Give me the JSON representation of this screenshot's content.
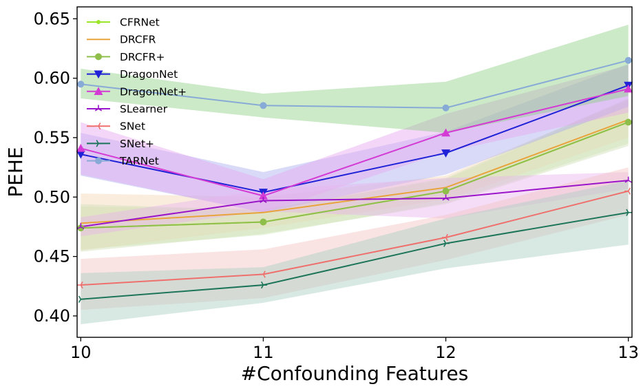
{
  "chart_data": {
    "type": "line",
    "xlabel": "#Confounding Features",
    "ylabel": "PEHE",
    "x": [
      10,
      11,
      12,
      13
    ],
    "x_ticks": [
      "10",
      "11",
      "12",
      "13"
    ],
    "xlim": [
      9.98,
      13.02
    ],
    "ylim": [
      0.382,
      0.66
    ],
    "y_ticks": [
      "0.40",
      "0.45",
      "0.50",
      "0.55",
      "0.60",
      "0.65"
    ],
    "y_tick_values": [
      0.4,
      0.45,
      0.5,
      0.55,
      0.6,
      0.65
    ],
    "legend_position": "upper-left",
    "grid": false,
    "series": [
      {
        "name": "CFRNet",
        "color": "#9be52a",
        "marker": "dot",
        "values": [
          0.474,
          0.479,
          0.505,
          0.563
        ],
        "lower": [
          0.456,
          0.468,
          0.495,
          0.545
        ],
        "upper": [
          0.492,
          0.49,
          0.515,
          0.581
        ]
      },
      {
        "name": "DRCFR",
        "color": "#e8a33a",
        "marker": "none",
        "values": [
          0.478,
          0.487,
          0.508,
          0.565
        ],
        "lower": [
          0.455,
          0.474,
          0.498,
          0.55
        ],
        "upper": [
          0.503,
          0.5,
          0.518,
          0.582
        ]
      },
      {
        "name": "DRCFR+",
        "color": "#8fbf4a",
        "marker": "circle",
        "values": [
          0.474,
          0.479,
          0.505,
          0.563
        ],
        "lower": [
          0.454,
          0.469,
          0.494,
          0.543
        ],
        "upper": [
          0.494,
          0.489,
          0.516,
          0.583
        ]
      },
      {
        "name": "DragonNet",
        "color": "#1f22d6",
        "marker": "triangle-down",
        "values": [
          0.536,
          0.504,
          0.537,
          0.594
        ],
        "lower": [
          0.518,
          0.487,
          0.519,
          0.576
        ],
        "upper": [
          0.554,
          0.521,
          0.555,
          0.612
        ]
      },
      {
        "name": "DragonNet+",
        "color": "#d43ad4",
        "marker": "triangle-up",
        "values": [
          0.541,
          0.501,
          0.554,
          0.591
        ],
        "lower": [
          0.519,
          0.487,
          0.538,
          0.571
        ],
        "upper": [
          0.563,
          0.515,
          0.57,
          0.611
        ]
      },
      {
        "name": "SLearner",
        "color": "#9a14c9",
        "marker": "tri-up",
        "values": [
          0.475,
          0.497,
          0.499,
          0.514
        ],
        "lower": [
          0.467,
          0.488,
          0.482,
          0.507
        ],
        "upper": [
          0.483,
          0.506,
          0.516,
          0.521
        ]
      },
      {
        "name": "SNet",
        "color": "#ef6f6c",
        "marker": "tri-left",
        "values": [
          0.426,
          0.435,
          0.466,
          0.505
        ],
        "lower": [
          0.405,
          0.415,
          0.447,
          0.485
        ],
        "upper": [
          0.448,
          0.456,
          0.485,
          0.525
        ]
      },
      {
        "name": "SNet+",
        "color": "#1c7559",
        "marker": "tri-right",
        "values": [
          0.414,
          0.426,
          0.461,
          0.487
        ],
        "lower": [
          0.393,
          0.411,
          0.44,
          0.46
        ],
        "upper": [
          0.436,
          0.441,
          0.482,
          0.514
        ]
      },
      {
        "name": "TARNet",
        "color": "#88aad6",
        "marker": "circle",
        "values": [
          0.595,
          0.577,
          0.575,
          0.615
        ],
        "lower": [
          0.583,
          0.567,
          0.554,
          0.585
        ],
        "upper": [
          0.608,
          0.587,
          0.597,
          0.645
        ]
      }
    ],
    "band_colors": [
      "#cfe8b8",
      "#f4d7b5",
      "#cfe0b6",
      "#a9aef0",
      "#e7a6ef",
      "#e8b3f0",
      "#f5c3c2",
      "#a9cfc4",
      "#8fcf86"
    ]
  }
}
